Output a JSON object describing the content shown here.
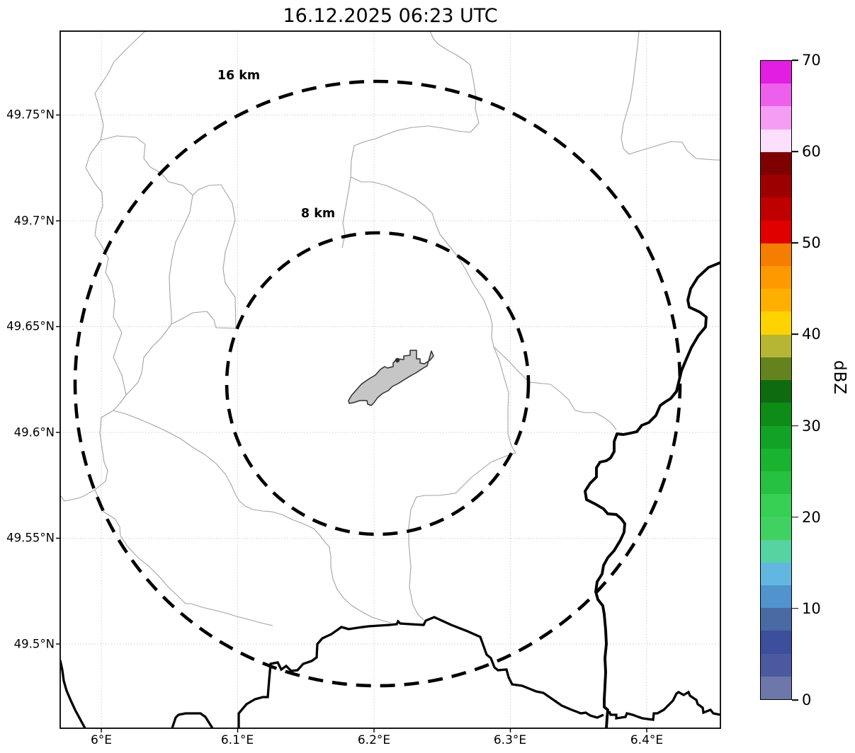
{
  "title": "16.12.2025 06:23 UTC",
  "axes": {
    "x_tick_labels": [
      "6°E",
      "6.1°E",
      "6.2°E",
      "6.3°E",
      "6.4°E"
    ],
    "y_tick_labels": [
      "49.75°N",
      "49.7°N",
      "49.65°N",
      "49.6°N",
      "49.55°N",
      "49.5°N"
    ]
  },
  "range_rings": {
    "outer": {
      "label": "16 km",
      "radius_km": 16
    },
    "inner": {
      "label": "8 km",
      "radius_km": 8
    }
  },
  "colorbar": {
    "label": "dBZ",
    "min": 0,
    "max": 70,
    "tick_values": [
      0,
      10,
      20,
      30,
      40,
      50,
      60,
      70
    ],
    "segment_step_dbz": 2.5,
    "colors_bottom_to_top": [
      "#6d77aa",
      "#4c58a0",
      "#3c4e9c",
      "#4a6aa3",
      "#5093cd",
      "#61b7e2",
      "#55d3a1",
      "#41d160",
      "#37cf54",
      "#27c141",
      "#1ab231",
      "#12a226",
      "#0d8c18",
      "#0f6b10",
      "#64831f",
      "#b7b634",
      "#ffd300",
      "#ffaf00",
      "#ff9900",
      "#f57e00",
      "#e10000",
      "#bf0000",
      "#9d0000",
      "#7f0000",
      "#fcdffc",
      "#f59df5",
      "#ec60ec",
      "#e11ee1"
    ]
  },
  "colors": {
    "range_ring": "#000000",
    "admin_boundary": "#a3a3a3",
    "country_border": "#000000",
    "airport_fill": "#c6c6c6",
    "airport_outline": "#2f2f2f",
    "grid": "#cfcfcf"
  }
}
